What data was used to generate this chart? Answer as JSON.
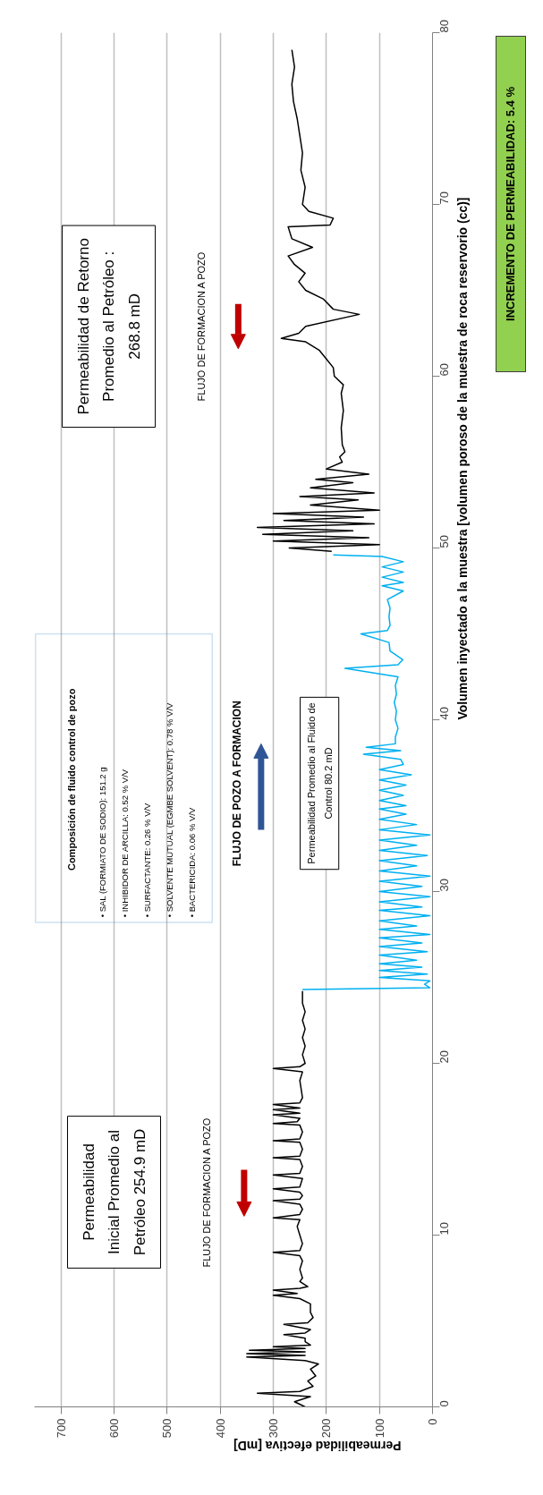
{
  "chart_data": {
    "type": "line",
    "xlabel": "Permeabilidad efectiva [mD]",
    "ylabel": "Volumen inyectado a la muestra [volumen poroso de la muestra de roca reservorio (cc)]",
    "xlim": [
      750,
      0
    ],
    "xticks": [
      0,
      100,
      200,
      300,
      400,
      500,
      600,
      700
    ],
    "ylim": [
      0,
      80
    ],
    "yticks": [
      0,
      10,
      20,
      30,
      40,
      50,
      60,
      70,
      80
    ],
    "grid": "x",
    "series": [
      {
        "color": "#000000",
        "values": [
          0,
          0.3,
          0.6,
          0.8,
          0.9,
          1.2,
          1.5,
          1.8,
          2.2,
          2.5,
          2.7,
          2.9,
          3.0,
          3.1,
          3.2,
          3.3,
          3.4,
          3.5,
          3.6,
          3.8,
          4.0,
          4.2,
          4.3,
          4.5,
          4.8,
          4.9,
          5.2,
          5.5,
          6.0,
          6.3,
          6.5,
          6.6,
          6.8,
          6.9,
          7.0,
          7.3,
          7.5,
          8.0,
          8.5,
          8.8,
          9.0,
          9.1,
          9.5,
          10.0,
          10.5,
          10.9,
          11.0,
          11.2,
          11.5,
          11.8,
          12.0,
          12.1,
          12.3,
          12.5,
          12.7,
          12.8,
          13.3,
          13.5,
          13.6,
          14.0,
          14.4,
          14.5,
          14.6,
          15.0,
          15.4,
          15.5,
          15.6,
          16.0,
          16.4,
          16.5,
          16.6,
          16.8,
          17.0,
          17.1,
          17.3,
          17.4,
          17.6,
          17.7,
          18.0,
          19.0,
          19.5,
          19.7,
          19.8,
          20.0,
          20.5,
          21.0,
          21.5,
          22.0,
          22.5,
          23.0,
          23.5,
          24.2
        ],
        "x": [
          240,
          260,
          230,
          330,
          250,
          225,
          235,
          220,
          230,
          215,
          240,
          350,
          240,
          350,
          240,
          345,
          240,
          300,
          230,
          240,
          240,
          280,
          240,
          230,
          280,
          235,
          225,
          230,
          230,
          250,
          300,
          255,
          300,
          250,
          235,
          250,
          245,
          250,
          245,
          250,
          300,
          250,
          245,
          250,
          255,
          250,
          300,
          250,
          245,
          250,
          300,
          250,
          245,
          250,
          300,
          250,
          245,
          300,
          250,
          245,
          250,
          300,
          250,
          245,
          250,
          300,
          250,
          245,
          250,
          300,
          255,
          250,
          300,
          250,
          300,
          250,
          300,
          250,
          245,
          250,
          245,
          300,
          250,
          240,
          245,
          240,
          245,
          240,
          245,
          240,
          245,
          245
        ]
      },
      {
        "color": "#00b0f0",
        "values": [
          24.3,
          24.4,
          24.6,
          24.8,
          25.0,
          25.2,
          25.4,
          25.6,
          25.8,
          26.0,
          26.3,
          26.5,
          26.8,
          27.0,
          27.3,
          27.5,
          27.8,
          28.0,
          28.3,
          28.6,
          28.9,
          29.1,
          29.4,
          29.7,
          30.0,
          30.3,
          30.6,
          30.9,
          31.2,
          31.5,
          31.8,
          32.1,
          32.4,
          32.7,
          33.0,
          33.3,
          33.6,
          33.9,
          34.2,
          34.5,
          34.8,
          35.0,
          35.3,
          35.6,
          35.9,
          36.2,
          36.5,
          36.8,
          37.1,
          37.4,
          37.7,
          38.0,
          38.2,
          38.4,
          38.6,
          39.0,
          39.5,
          40.0,
          40.5,
          41.0,
          41.5,
          42.0,
          42.5,
          43.0,
          43.2,
          43.5,
          44.0,
          44.5,
          45.0,
          45.2,
          45.5,
          46.0,
          46.5,
          47.0,
          47.5,
          47.8,
          48.0,
          48.3,
          48.6,
          48.9,
          49.2,
          49.5,
          49.6
        ],
        "x": [
          245,
          5,
          15,
          5,
          100,
          10,
          100,
          20,
          100,
          30,
          100,
          10,
          100,
          20,
          100,
          5,
          100,
          30,
          100,
          5,
          100,
          20,
          100,
          5,
          100,
          20,
          100,
          5,
          100,
          30,
          100,
          10,
          100,
          30,
          100,
          5,
          100,
          30,
          100,
          50,
          100,
          50,
          100,
          55,
          100,
          50,
          100,
          40,
          100,
          55,
          60,
          130,
          60,
          125,
          70,
          70,
          65,
          70,
          68,
          72,
          68,
          70,
          65,
          165,
          65,
          56,
          80,
          82,
          135,
          85,
          80,
          82,
          80,
          85,
          55,
          95,
          55,
          95,
          55,
          95,
          55,
          95,
          187
        ]
      },
      {
        "color": "#000000",
        "values": [
          49.8,
          50.0,
          50.2,
          50.4,
          50.6,
          50.8,
          51.0,
          51.2,
          51.4,
          51.6,
          51.8,
          52.0,
          52.2,
          52.5,
          52.8,
          53.0,
          53.2,
          53.5,
          53.8,
          54.0,
          54.3,
          54.6,
          55.0,
          55.3,
          55.6,
          56,
          57,
          58,
          58.5,
          59,
          59.5,
          60,
          60.5,
          61,
          61.5,
          62,
          62.2,
          62.5,
          62.9,
          63.6,
          63.9,
          64.5,
          65,
          65.5,
          66,
          66.5,
          67,
          67.5,
          68,
          68.7,
          68.8,
          69.2,
          69.6,
          70,
          71,
          72,
          73,
          74,
          75,
          76,
          77,
          78,
          79
        ],
        "x": [
          190,
          270,
          100,
          300,
          120,
          320,
          150,
          330,
          110,
          280,
          130,
          300,
          100,
          230,
          140,
          250,
          110,
          230,
          150,
          220,
          120,
          200,
          170,
          175,
          165,
          170,
          172,
          168,
          170,
          172,
          168,
          185,
          187,
          200,
          213,
          239,
          285,
          252,
          239,
          138,
          187,
          206,
          239,
          252,
          240,
          260,
          272,
          226,
          265,
          272,
          193,
          187,
          233,
          245,
          240,
          248,
          245,
          250,
          255,
          262,
          265,
          260,
          265
        ]
      }
    ],
    "annotations": [
      "Permeabilidad\nInicial Promedio al\nPetróleo 254.9 mD",
      "FLUJO DE FORMACION A POZO",
      "Composición  de fluido control de pozo",
      "• SAL  (FORMIATO DE SODIO):   151.2  g",
      "• INHIBIDOR DE ARCILLA:   0.52 % V/V",
      "• SURFACTANTE:   0.26 % V/V",
      "• SOLVENTE MUTUAL (EGMBE SOLVENT):   0.78 % V/V",
      "• BACTERICIDA:   0.06 % V/V",
      "FLUJO DE  POZO A FORMACION",
      "Permeabilidad Promedio al Fluido de\nControl 80.2 mD",
      "Permeabilidad de Retorno\nPromedio al Petróleo :\n268.8 mD",
      "FLUJO DE FORMACION  A POZO",
      "INCREMENTO DE PERMEABILIDAD: 5.4 %"
    ]
  }
}
